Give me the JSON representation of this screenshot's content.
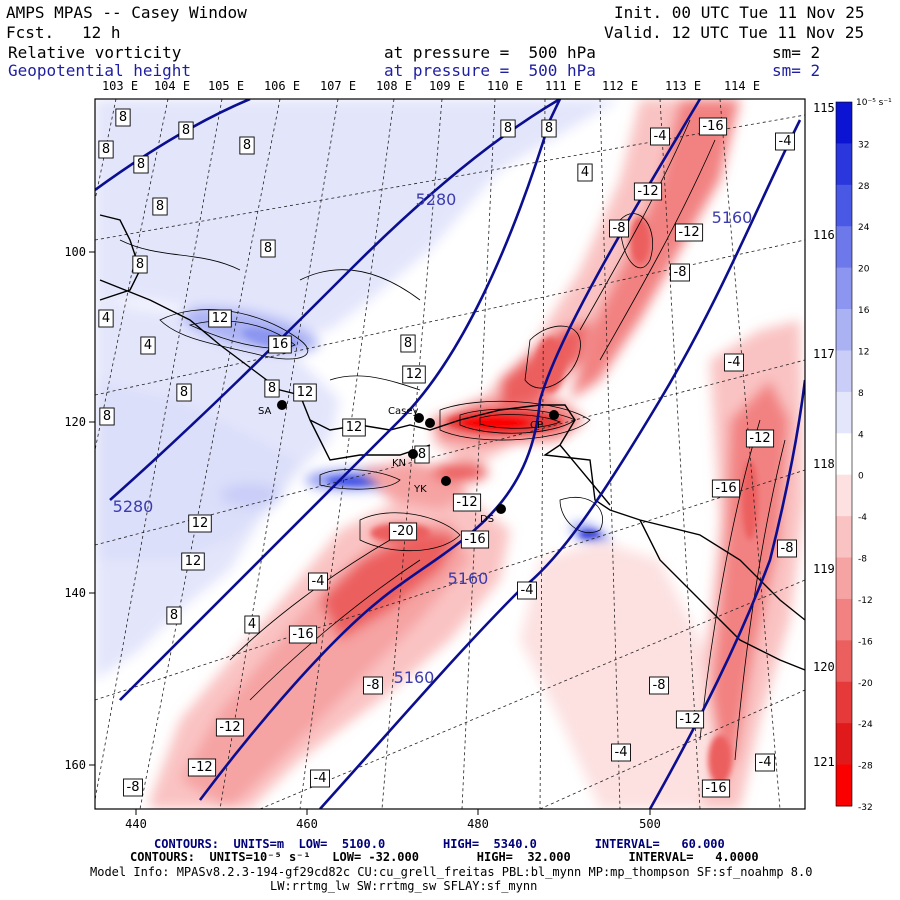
{
  "header": {
    "title": "AMPS MPAS -- Casey Window",
    "init": "Init. 00 UTC Tue 11 Nov 25",
    "valid": "Valid. 12 UTC Tue 11 Nov 25",
    "fcst_label": "Fcst.",
    "fcst_value": "12 h",
    "field1": "Relative vorticity",
    "field1_level": "at pressure =  500 hPa",
    "field1_sm": "sm= 2",
    "field2": "Geopotential height",
    "field2_level": "at pressure =  500 hPa",
    "field2_sm": "sm= 2"
  },
  "map": {
    "lon_top": [
      "103 E",
      "104 E",
      "105 E",
      "106 E",
      "107 E",
      "108 E",
      "109 E",
      "110 E",
      "111 E",
      "112 E",
      "113 E",
      "114 E"
    ],
    "lon_right": [
      "115 E",
      "116 E",
      "117 E",
      "118 E",
      "119 E",
      "120 E",
      "121 E"
    ],
    "x_ticks": [
      "440",
      "460",
      "480",
      "500"
    ],
    "y_ticks": [
      "100",
      "120",
      "140",
      "160"
    ],
    "height_labels": [
      "5280",
      "5280",
      "5160",
      "5160",
      "5160"
    ],
    "vort_labels": [
      "8",
      "8",
      "8",
      "8",
      "8",
      "8",
      "8",
      "8",
      "8",
      "8",
      "8",
      "8",
      "8",
      "8",
      "8",
      "4",
      "4",
      "4",
      "4",
      "12",
      "16",
      "12",
      "12",
      "12",
      "12",
      "12",
      "8",
      "-4",
      "-16",
      "-12",
      "-8",
      "-12",
      "-8",
      "-4",
      "-4",
      "-12",
      "-16",
      "-8",
      "-8",
      "-12",
      "-4",
      "-4",
      "-20",
      "-16",
      "-12",
      "-4",
      "-4",
      "-16",
      "-8",
      "-12",
      "-12",
      "-8",
      "-4",
      "-16"
    ],
    "stations": [
      "Casey",
      "CP",
      "SA",
      "KN",
      "YK",
      "DS"
    ]
  },
  "colorbar": {
    "unit": "10⁻⁵ s⁻¹",
    "labels": [
      "32",
      "28",
      "24",
      "20",
      "16",
      "12",
      "8",
      "4",
      "0",
      "-4",
      "-8",
      "-12",
      "-16",
      "-20",
      "-24",
      "-28",
      "-32"
    ],
    "colors": [
      "#0a14d2",
      "#2a37dc",
      "#4a58e6",
      "#6d79eb",
      "#8c96f0",
      "#abb2f4",
      "#c9cdf8",
      "#e4e6fb",
      "#ffffff",
      "#fde1e1",
      "#fac3c3",
      "#f6a3a3",
      "#f28282",
      "#ec5f5f",
      "#e63a3a",
      "#e01a1a",
      "#fa0000"
    ]
  },
  "footer": {
    "line1": "CONTOURS:  UNITS=m  LOW=  5100.0        HIGH=  5340.0        INTERVAL=   60.000",
    "line2": "CONTOURS:  UNITS=10⁻⁵ s⁻¹   LOW= -32.000        HIGH=  32.000        INTERVAL=   4.0000",
    "line3": "Model Info: MPASv8.2.3-194-gf29cd82c CU:cu_grell_freitas PBL:bl_mynn MP:mp_thompson SF:sf_noahmp 8.0",
    "line4": "LW:rrtmg_lw SW:rrtmg_sw SFLAY:sf_mynn"
  }
}
